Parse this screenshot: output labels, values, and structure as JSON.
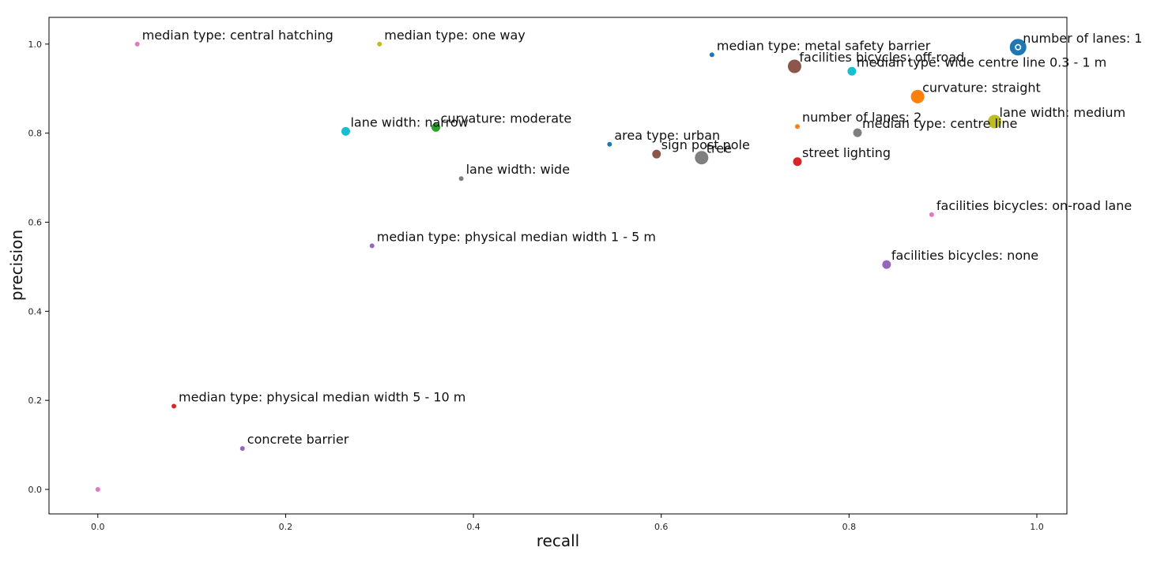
{
  "chart_data": {
    "type": "scatter",
    "xlabel": "recall",
    "ylabel": "precision",
    "xlim": [
      -0.052,
      1.032
    ],
    "ylim": [
      -0.055,
      1.06
    ],
    "xticks": [
      0.0,
      0.2,
      0.4,
      0.6,
      0.8,
      1.0
    ],
    "xtick_labels": [
      "0.0",
      "0.2",
      "0.4",
      "0.6",
      "0.8",
      "1.0"
    ],
    "yticks": [
      0.0,
      0.2,
      0.4,
      0.6,
      0.8,
      1.0
    ],
    "ytick_labels": [
      "0.0",
      "0.2",
      "0.4",
      "0.6",
      "0.8",
      "1.0"
    ],
    "grid": false,
    "points": [
      {
        "label": "median type: central hatching",
        "x": 0.042,
        "y": 1.0,
        "color": "#e377c2",
        "size": "small"
      },
      {
        "label": "median type: one way",
        "x": 0.3,
        "y": 1.0,
        "color": "#bcbd22",
        "size": "small"
      },
      {
        "label": "median type: metal safety barrier",
        "x": 0.654,
        "y": 0.976,
        "color": "#1f77b4",
        "size": "small"
      },
      {
        "label": "facilities bicycles: off-road",
        "x": 0.742,
        "y": 0.95,
        "color": "#8c564b",
        "size": "large"
      },
      {
        "label": "median type: wide centre line 0.3 - 1 m",
        "x": 0.803,
        "y": 0.939,
        "color": "#17becf",
        "size": "medium"
      },
      {
        "label": "number of lanes: 1",
        "x": 0.98,
        "y": 0.993,
        "color": "#1f77b4",
        "size": "xlarge"
      },
      {
        "label": "curvature: straight",
        "x": 0.873,
        "y": 0.882,
        "color": "#ff7f0e",
        "size": "large"
      },
      {
        "label": "lane width: medium",
        "x": 0.955,
        "y": 0.826,
        "color": "#bcbd22",
        "size": "large"
      },
      {
        "label": "number of lanes: 2",
        "x": 0.745,
        "y": 0.815,
        "color": "#ff7f0e",
        "size": "small"
      },
      {
        "label": "median type: centre line",
        "x": 0.809,
        "y": 0.801,
        "color": "#7f7f7f",
        "size": "medium"
      },
      {
        "label": "lane width: narrow",
        "x": 0.264,
        "y": 0.804,
        "color": "#17becf",
        "size": "medium"
      },
      {
        "label": "curvature: moderate",
        "x": 0.36,
        "y": 0.813,
        "color": "#2ca02c",
        "size": "medium"
      },
      {
        "label": "area type: urban",
        "x": 0.545,
        "y": 0.775,
        "color": "#1f77b4",
        "size": "small"
      },
      {
        "label": "sign post pole",
        "x": 0.595,
        "y": 0.753,
        "color": "#8c564b",
        "size": "medium"
      },
      {
        "label": "tree",
        "x": 0.643,
        "y": 0.745,
        "color": "#7f7f7f",
        "size": "large"
      },
      {
        "label": "street lighting",
        "x": 0.745,
        "y": 0.736,
        "color": "#d62728",
        "size": "medium"
      },
      {
        "label": "lane width: wide",
        "x": 0.387,
        "y": 0.698,
        "color": "#7f7f7f",
        "size": "small"
      },
      {
        "label": "facilities bicycles: on-road lane",
        "x": 0.888,
        "y": 0.617,
        "color": "#e377c2",
        "size": "small"
      },
      {
        "label": "median type: physical median width 1 - 5 m",
        "x": 0.292,
        "y": 0.547,
        "color": "#9467bd",
        "size": "small"
      },
      {
        "label": "facilities bicycles: none",
        "x": 0.84,
        "y": 0.505,
        "color": "#9467bd",
        "size": "medium"
      },
      {
        "label": "median type: physical median width 5 - 10 m",
        "x": 0.081,
        "y": 0.187,
        "color": "#d62728",
        "size": "small"
      },
      {
        "label": "concrete barrier",
        "x": 0.154,
        "y": 0.092,
        "color": "#9467bd",
        "size": "small"
      },
      {
        "label": "",
        "x": 0.0,
        "y": 0.0,
        "color": "#e377c2",
        "size": "small"
      }
    ]
  }
}
